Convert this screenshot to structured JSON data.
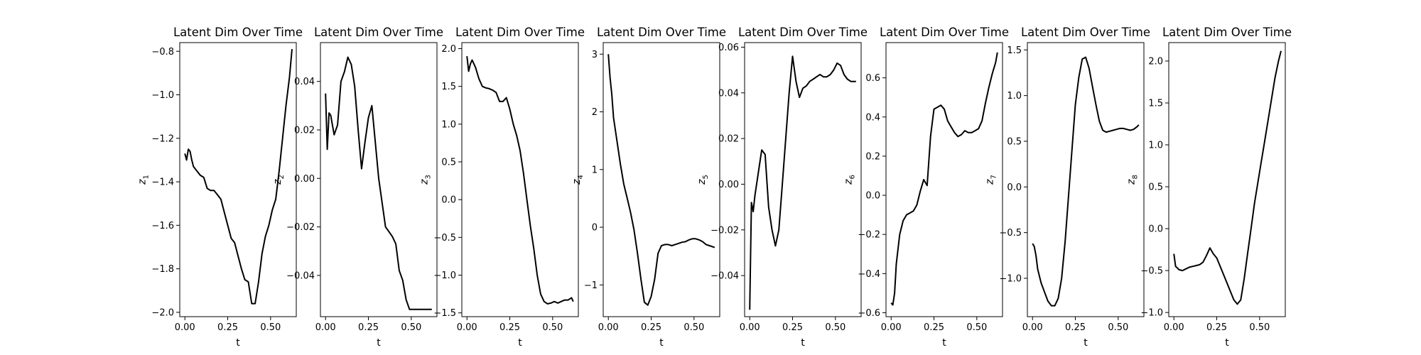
{
  "chart_data": [
    {
      "type": "line",
      "title": "Latent Dim Over Time",
      "xlabel": "t",
      "ylabel": "z",
      "ylabel_sub": "1",
      "grid": false,
      "xlim": [
        -0.03,
        0.65
      ],
      "xticks": [
        0.0,
        0.25,
        0.5
      ],
      "xtick_labels": [
        "0.00",
        "0.25",
        "0.50"
      ],
      "ylim": [
        -2.02,
        -0.76
      ],
      "yticks": [
        -2.0,
        -1.8,
        -1.6,
        -1.4,
        -1.2,
        -1.0,
        -0.8
      ],
      "ytick_labels": [
        "−2.0",
        "−1.8",
        "−1.6",
        "−1.4",
        "−1.2",
        "−1.0",
        "−0.8"
      ],
      "series": [
        {
          "x": [
            0.0,
            0.01,
            0.02,
            0.03,
            0.04,
            0.05,
            0.07,
            0.09,
            0.11,
            0.13,
            0.15,
            0.17,
            0.19,
            0.21,
            0.23,
            0.25,
            0.27,
            0.29,
            0.31,
            0.33,
            0.35,
            0.37,
            0.39,
            0.41,
            0.43,
            0.45,
            0.47,
            0.49,
            0.51,
            0.53,
            0.55,
            0.57,
            0.59,
            0.61,
            0.625
          ],
          "y": [
            -1.27,
            -1.3,
            -1.25,
            -1.26,
            -1.3,
            -1.33,
            -1.35,
            -1.37,
            -1.38,
            -1.43,
            -1.44,
            -1.44,
            -1.46,
            -1.48,
            -1.54,
            -1.6,
            -1.66,
            -1.68,
            -1.74,
            -1.8,
            -1.85,
            -1.86,
            -1.96,
            -1.96,
            -1.86,
            -1.73,
            -1.65,
            -1.6,
            -1.53,
            -1.48,
            -1.35,
            -1.2,
            -1.05,
            -0.92,
            -0.79
          ]
        }
      ]
    },
    {
      "type": "line",
      "title": "Latent Dim Over Time",
      "xlabel": "t",
      "ylabel": "z",
      "ylabel_sub": "2",
      "grid": false,
      "xlim": [
        -0.03,
        0.65
      ],
      "xticks": [
        0.0,
        0.25,
        0.5
      ],
      "xtick_labels": [
        "0.00",
        "0.25",
        "0.50"
      ],
      "ylim": [
        -0.057,
        0.056
      ],
      "yticks": [
        -0.04,
        -0.02,
        0.0,
        0.02,
        0.04
      ],
      "ytick_labels": [
        "−0.04",
        "−0.02",
        "0.00",
        "0.02",
        "0.04"
      ],
      "series": [
        {
          "x": [
            0.0,
            0.01,
            0.02,
            0.03,
            0.05,
            0.07,
            0.09,
            0.11,
            0.13,
            0.15,
            0.17,
            0.19,
            0.21,
            0.23,
            0.25,
            0.27,
            0.29,
            0.31,
            0.33,
            0.35,
            0.37,
            0.39,
            0.41,
            0.43,
            0.45,
            0.47,
            0.49,
            0.51,
            0.53,
            0.55,
            0.57,
            0.59,
            0.61,
            0.62
          ],
          "y": [
            0.035,
            0.012,
            0.027,
            0.026,
            0.018,
            0.022,
            0.04,
            0.044,
            0.05,
            0.047,
            0.038,
            0.02,
            0.004,
            0.015,
            0.025,
            0.03,
            0.015,
            0.0,
            -0.01,
            -0.02,
            -0.022,
            -0.024,
            -0.027,
            -0.038,
            -0.042,
            -0.05,
            -0.054,
            -0.054,
            -0.054,
            -0.054,
            -0.054,
            -0.054,
            -0.054,
            -0.054
          ]
        }
      ]
    },
    {
      "type": "line",
      "title": "Latent Dim Over Time",
      "xlabel": "t",
      "ylabel": "z",
      "ylabel_sub": "3",
      "grid": false,
      "xlim": [
        -0.03,
        0.65
      ],
      "xticks": [
        0.0,
        0.25,
        0.5
      ],
      "xtick_labels": [
        "0.00",
        "0.25",
        "0.50"
      ],
      "ylim": [
        -1.55,
        2.08
      ],
      "yticks": [
        -1.5,
        -1.0,
        -0.5,
        0.0,
        0.5,
        1.0,
        1.5,
        2.0
      ],
      "ytick_labels": [
        "−1.5",
        "−1.0",
        "−0.5",
        "0.0",
        "0.5",
        "1.0",
        "1.5",
        "2.0"
      ],
      "series": [
        {
          "x": [
            0.0,
            0.01,
            0.02,
            0.03,
            0.05,
            0.07,
            0.09,
            0.11,
            0.13,
            0.15,
            0.17,
            0.19,
            0.21,
            0.23,
            0.25,
            0.27,
            0.29,
            0.31,
            0.33,
            0.35,
            0.37,
            0.39,
            0.41,
            0.43,
            0.45,
            0.47,
            0.49,
            0.51,
            0.53,
            0.55,
            0.57,
            0.59,
            0.61,
            0.62
          ],
          "y": [
            1.9,
            1.7,
            1.8,
            1.85,
            1.75,
            1.6,
            1.5,
            1.48,
            1.47,
            1.45,
            1.42,
            1.3,
            1.3,
            1.35,
            1.2,
            1.0,
            0.85,
            0.65,
            0.35,
            0.0,
            -0.35,
            -0.65,
            -1.0,
            -1.25,
            -1.35,
            -1.38,
            -1.37,
            -1.35,
            -1.37,
            -1.35,
            -1.33,
            -1.33,
            -1.3,
            -1.35
          ]
        }
      ]
    },
    {
      "type": "line",
      "title": "Latent Dim Over Time",
      "xlabel": "t",
      "ylabel": "z",
      "ylabel_sub": "4",
      "grid": false,
      "xlim": [
        -0.03,
        0.65
      ],
      "xticks": [
        0.0,
        0.25,
        0.5
      ],
      "xtick_labels": [
        "0.00",
        "0.25",
        "0.50"
      ],
      "ylim": [
        -1.55,
        3.2
      ],
      "yticks": [
        -1,
        0,
        1,
        2,
        3
      ],
      "ytick_labels": [
        "−1",
        "0",
        "1",
        "2",
        "3"
      ],
      "series": [
        {
          "x": [
            0.0,
            0.01,
            0.02,
            0.03,
            0.05,
            0.07,
            0.09,
            0.11,
            0.13,
            0.15,
            0.17,
            0.19,
            0.21,
            0.23,
            0.25,
            0.27,
            0.29,
            0.31,
            0.33,
            0.35,
            0.37,
            0.39,
            0.41,
            0.43,
            0.45,
            0.47,
            0.49,
            0.51,
            0.53,
            0.55,
            0.57,
            0.59,
            0.61,
            0.62
          ],
          "y": [
            3.0,
            2.6,
            2.3,
            1.9,
            1.5,
            1.1,
            0.75,
            0.5,
            0.25,
            -0.05,
            -0.45,
            -0.9,
            -1.3,
            -1.35,
            -1.2,
            -0.9,
            -0.45,
            -0.32,
            -0.3,
            -0.3,
            -0.32,
            -0.3,
            -0.28,
            -0.26,
            -0.25,
            -0.22,
            -0.2,
            -0.2,
            -0.22,
            -0.25,
            -0.3,
            -0.32,
            -0.34,
            -0.35
          ]
        }
      ]
    },
    {
      "type": "line",
      "title": "Latent Dim Over Time",
      "xlabel": "t",
      "ylabel": "z",
      "ylabel_sub": "5",
      "grid": false,
      "xlim": [
        -0.03,
        0.65
      ],
      "xticks": [
        0.0,
        0.25,
        0.5
      ],
      "xtick_labels": [
        "0.00",
        "0.25",
        "0.50"
      ],
      "ylim": [
        -0.058,
        0.062
      ],
      "yticks": [
        -0.04,
        -0.02,
        0.0,
        0.02,
        0.04,
        0.06
      ],
      "ytick_labels": [
        "−0.04",
        "−0.02",
        "0.00",
        "0.02",
        "0.04",
        "0.06"
      ],
      "series": [
        {
          "x": [
            0.0,
            0.01,
            0.02,
            0.03,
            0.05,
            0.07,
            0.09,
            0.11,
            0.13,
            0.15,
            0.17,
            0.19,
            0.21,
            0.23,
            0.25,
            0.27,
            0.29,
            0.31,
            0.33,
            0.35,
            0.37,
            0.39,
            0.41,
            0.43,
            0.45,
            0.47,
            0.49,
            0.51,
            0.53,
            0.55,
            0.57,
            0.59,
            0.61,
            0.62
          ],
          "y": [
            -0.055,
            -0.008,
            -0.012,
            -0.005,
            0.005,
            0.015,
            0.013,
            -0.01,
            -0.02,
            -0.027,
            -0.02,
            0.0,
            0.02,
            0.04,
            0.056,
            0.045,
            0.038,
            0.042,
            0.043,
            0.045,
            0.046,
            0.047,
            0.048,
            0.047,
            0.047,
            0.048,
            0.05,
            0.053,
            0.052,
            0.048,
            0.046,
            0.045,
            0.045,
            0.045
          ]
        }
      ]
    },
    {
      "type": "line",
      "title": "Latent Dim Over Time",
      "xlabel": "t",
      "ylabel": "z",
      "ylabel_sub": "6",
      "grid": false,
      "xlim": [
        -0.03,
        0.65
      ],
      "xticks": [
        0.0,
        0.25,
        0.5
      ],
      "xtick_labels": [
        "0.00",
        "0.25",
        "0.50"
      ],
      "ylim": [
        -0.62,
        0.78
      ],
      "yticks": [
        -0.6,
        -0.4,
        -0.2,
        0.0,
        0.2,
        0.4,
        0.6
      ],
      "ytick_labels": [
        "−0.6",
        "−0.4",
        "−0.2",
        "0.0",
        "0.2",
        "0.4",
        "0.6"
      ],
      "series": [
        {
          "x": [
            0.0,
            0.01,
            0.02,
            0.03,
            0.05,
            0.07,
            0.09,
            0.11,
            0.13,
            0.15,
            0.17,
            0.19,
            0.21,
            0.23,
            0.25,
            0.27,
            0.29,
            0.31,
            0.33,
            0.35,
            0.37,
            0.39,
            0.41,
            0.43,
            0.45,
            0.47,
            0.49,
            0.51,
            0.53,
            0.55,
            0.57,
            0.59,
            0.61,
            0.62
          ],
          "y": [
            -0.55,
            -0.56,
            -0.5,
            -0.35,
            -0.2,
            -0.13,
            -0.1,
            -0.09,
            -0.08,
            -0.05,
            0.02,
            0.08,
            0.05,
            0.3,
            0.44,
            0.45,
            0.46,
            0.44,
            0.38,
            0.35,
            0.32,
            0.3,
            0.31,
            0.33,
            0.32,
            0.32,
            0.33,
            0.34,
            0.38,
            0.47,
            0.55,
            0.62,
            0.68,
            0.73
          ]
        }
      ]
    },
    {
      "type": "line",
      "title": "Latent Dim Over Time",
      "xlabel": "t",
      "ylabel": "z",
      "ylabel_sub": "7",
      "grid": false,
      "xlim": [
        -0.03,
        0.65
      ],
      "xticks": [
        0.0,
        0.25,
        0.5
      ],
      "xtick_labels": [
        "0.00",
        "0.25",
        "0.50"
      ],
      "ylim": [
        -1.42,
        1.58
      ],
      "yticks": [
        -1.0,
        -0.5,
        0.0,
        0.5,
        1.0,
        1.5
      ],
      "ytick_labels": [
        "−1.0",
        "−0.5",
        "0.0",
        "0.5",
        "1.0",
        "1.5"
      ],
      "series": [
        {
          "x": [
            0.0,
            0.01,
            0.02,
            0.03,
            0.05,
            0.07,
            0.09,
            0.11,
            0.13,
            0.15,
            0.17,
            0.19,
            0.21,
            0.23,
            0.25,
            0.27,
            0.29,
            0.31,
            0.33,
            0.35,
            0.37,
            0.39,
            0.41,
            0.43,
            0.45,
            0.47,
            0.49,
            0.51,
            0.53,
            0.55,
            0.57,
            0.59,
            0.61,
            0.62
          ],
          "y": [
            -0.62,
            -0.65,
            -0.75,
            -0.9,
            -1.05,
            -1.15,
            -1.25,
            -1.3,
            -1.3,
            -1.22,
            -1.0,
            -0.6,
            -0.1,
            0.4,
            0.9,
            1.2,
            1.4,
            1.42,
            1.3,
            1.1,
            0.9,
            0.72,
            0.62,
            0.6,
            0.61,
            0.62,
            0.63,
            0.64,
            0.64,
            0.63,
            0.62,
            0.63,
            0.66,
            0.68
          ]
        }
      ]
    },
    {
      "type": "line",
      "title": "Latent Dim Over Time",
      "xlabel": "t",
      "ylabel": "z",
      "ylabel_sub": "8",
      "grid": false,
      "xlim": [
        -0.03,
        0.65
      ],
      "xticks": [
        0.0,
        0.25,
        0.5
      ],
      "xtick_labels": [
        "0.00",
        "0.25",
        "0.50"
      ],
      "ylim": [
        -1.05,
        2.22
      ],
      "yticks": [
        -1.0,
        -0.5,
        0.0,
        0.5,
        1.0,
        1.5,
        2.0
      ],
      "ytick_labels": [
        "−1.0",
        "−0.5",
        "0.0",
        "0.5",
        "1.0",
        "1.5",
        "2.0"
      ],
      "series": [
        {
          "x": [
            0.0,
            0.01,
            0.02,
            0.03,
            0.05,
            0.07,
            0.09,
            0.11,
            0.13,
            0.15,
            0.17,
            0.19,
            0.21,
            0.23,
            0.25,
            0.27,
            0.29,
            0.31,
            0.33,
            0.35,
            0.37,
            0.39,
            0.41,
            0.43,
            0.45,
            0.47,
            0.49,
            0.51,
            0.53,
            0.55,
            0.57,
            0.59,
            0.61,
            0.625
          ],
          "y": [
            -0.3,
            -0.45,
            -0.47,
            -0.49,
            -0.5,
            -0.48,
            -0.46,
            -0.45,
            -0.44,
            -0.43,
            -0.4,
            -0.32,
            -0.23,
            -0.3,
            -0.35,
            -0.45,
            -0.55,
            -0.65,
            -0.75,
            -0.85,
            -0.9,
            -0.85,
            -0.6,
            -0.3,
            0.0,
            0.3,
            0.55,
            0.8,
            1.05,
            1.3,
            1.55,
            1.8,
            2.0,
            2.12
          ]
        }
      ]
    }
  ]
}
